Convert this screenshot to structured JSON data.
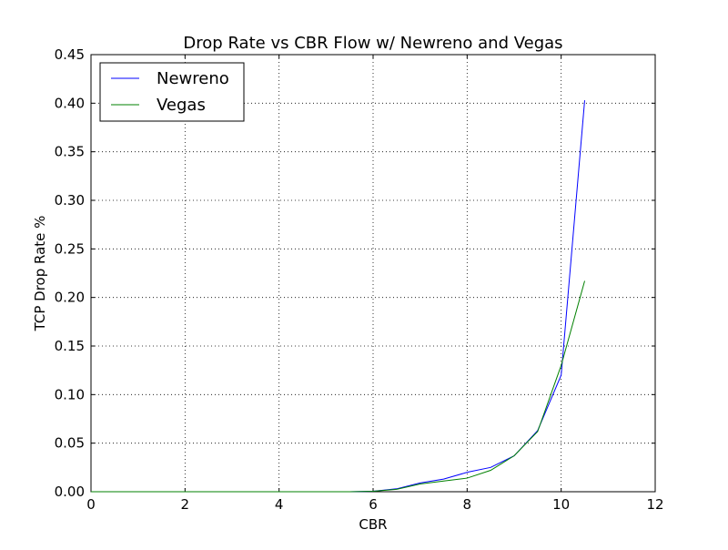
{
  "chart_data": {
    "type": "line",
    "title": "Drop Rate vs CBR Flow w/ Newreno and Vegas",
    "xlabel": "CBR",
    "ylabel": "TCP Drop Rate %",
    "xlim": [
      0,
      12
    ],
    "ylim": [
      0,
      0.45
    ],
    "x_ticks": [
      0,
      2,
      4,
      6,
      8,
      10,
      12
    ],
    "y_ticks": [
      0.0,
      0.05,
      0.1,
      0.15,
      0.2,
      0.25,
      0.3,
      0.35,
      0.4,
      0.45
    ],
    "x_tick_labels": [
      "0",
      "2",
      "4",
      "6",
      "8",
      "10",
      "12"
    ],
    "y_tick_labels": [
      "0.00",
      "0.05",
      "0.10",
      "0.15",
      "0.20",
      "0.25",
      "0.30",
      "0.35",
      "0.40",
      "0.45"
    ],
    "grid": true,
    "legend_position": "top-left",
    "series": [
      {
        "name": "Newreno",
        "color": "#0000ff",
        "x": [
          0,
          0.5,
          1,
          1.5,
          2,
          2.5,
          3,
          3.5,
          4,
          4.5,
          5,
          5.5,
          6,
          6.5,
          7,
          7.5,
          8,
          8.5,
          9,
          9.5,
          10,
          10.5
        ],
        "values": [
          0,
          0,
          0,
          0,
          0,
          0,
          0,
          0,
          0,
          0,
          0,
          0,
          0.0005,
          0.003,
          0.009,
          0.013,
          0.02,
          0.025,
          0.037,
          0.063,
          0.12,
          0.403
        ]
      },
      {
        "name": "Vegas",
        "color": "#008000",
        "x": [
          0,
          0.5,
          1,
          1.5,
          2,
          2.5,
          3,
          3.5,
          4,
          4.5,
          5,
          5.5,
          6,
          6.5,
          7,
          7.5,
          8,
          8.5,
          9,
          9.5,
          10,
          10.5
        ],
        "values": [
          0,
          0,
          0,
          0,
          0,
          0,
          0,
          0,
          0,
          0,
          0,
          0,
          0.0005,
          0.0025,
          0.008,
          0.011,
          0.014,
          0.022,
          0.037,
          0.062,
          0.13,
          0.217
        ]
      }
    ]
  }
}
